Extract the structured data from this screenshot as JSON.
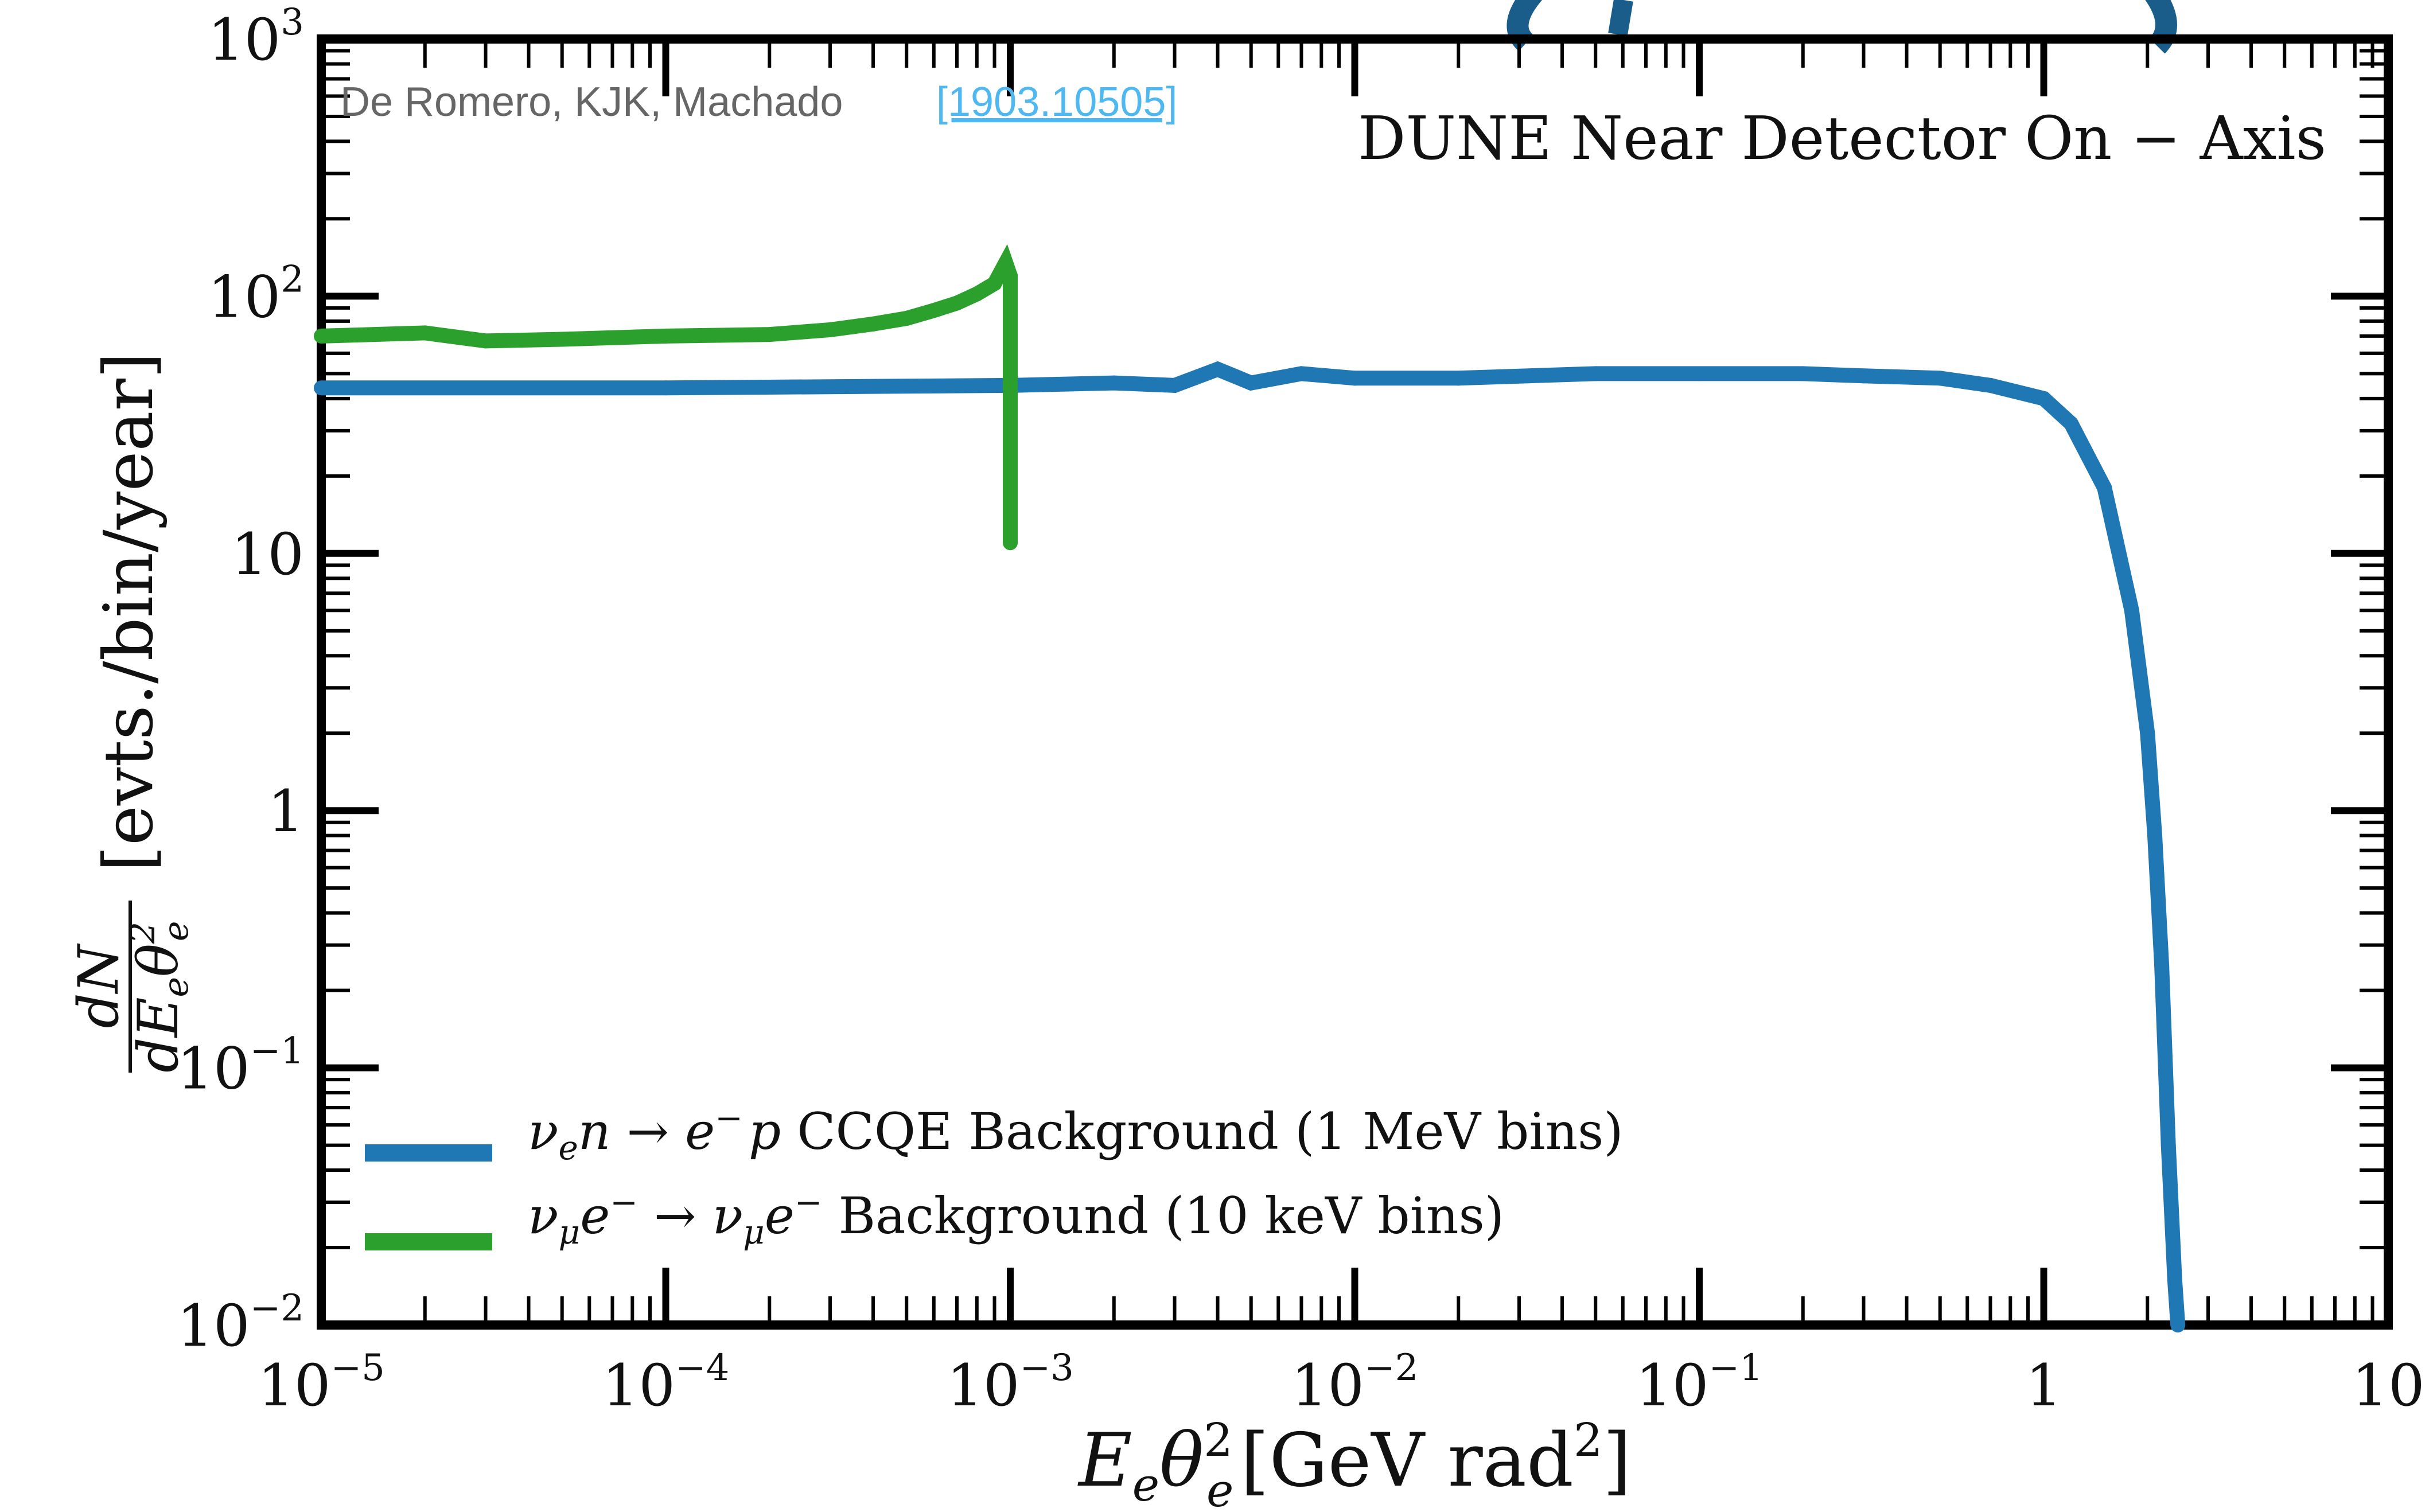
{
  "credit": {
    "authors": "De Romero, KJK, Machado",
    "arxiv": "[1903.10505]"
  },
  "annotation": "DUNE Near Detector On − Axis",
  "colors": {
    "ccqe": "#1f77b4",
    "mu_e": "#2ca02c",
    "title_fragment": "#1a5d8a"
  },
  "chart_data": {
    "type": "line",
    "xscale": "log",
    "yscale": "log",
    "xlim": [
      1e-05,
      10
    ],
    "ylim": [
      0.01,
      1000
    ],
    "xlabel": "E_e θ_e^2 [GeV rad^2]",
    "ylabel": "dN/dE_eθ_e^2 [evts./bin/year]",
    "x_ticks": [
      {
        "base": "10",
        "exp": "−5"
      },
      {
        "base": "10",
        "exp": "−4"
      },
      {
        "base": "10",
        "exp": "−3"
      },
      {
        "base": "10",
        "exp": "−2"
      },
      {
        "base": "10",
        "exp": "−1"
      },
      {
        "base": "1",
        "exp": ""
      },
      {
        "base": "10",
        "exp": ""
      }
    ],
    "y_ticks": [
      {
        "base": "10",
        "exp": "−2"
      },
      {
        "base": "10",
        "exp": "−1"
      },
      {
        "base": "1",
        "exp": ""
      },
      {
        "base": "10",
        "exp": ""
      },
      {
        "base": "10",
        "exp": "2"
      },
      {
        "base": "10",
        "exp": "3"
      }
    ],
    "legend_position": "lower-left",
    "series": [
      {
        "name": "ν_e n → e⁻ p CCQE Background (1 MeV bins)",
        "color": "#1f77b4",
        "x": [
          1e-05,
          0.0001,
          0.001,
          0.002,
          0.003,
          0.004,
          0.005,
          0.007,
          0.01,
          0.02,
          0.05,
          0.1,
          0.2,
          0.3,
          0.5,
          0.7,
          1.0,
          1.2,
          1.5,
          1.8,
          2.0,
          2.1,
          2.2,
          2.3,
          2.4,
          2.45
        ],
        "y": [
          44,
          44,
          45,
          46,
          45,
          52,
          46,
          50,
          48,
          48,
          50,
          50,
          50,
          49,
          48,
          45,
          40,
          32,
          18,
          6,
          2,
          0.8,
          0.25,
          0.05,
          0.015,
          0.01
        ]
      },
      {
        "name": "ν_μ e⁻ → ν_μ e⁻ Background (10 keV bins)",
        "color": "#2ca02c",
        "x": [
          1e-05,
          2e-05,
          3e-05,
          5e-05,
          0.0001,
          0.0002,
          0.0003,
          0.0004,
          0.0005,
          0.0006,
          0.0007,
          0.0008,
          0.0009,
          0.00097,
          0.001,
          0.001
        ],
        "y": [
          70,
          72,
          67,
          68,
          70,
          71,
          74,
          78,
          82,
          88,
          94,
          102,
          112,
          135,
          120,
          11
        ]
      }
    ],
    "legend_labels": {
      "ccqe": {
        "nu_sym": "ν",
        "nu_sub": "e",
        "mid": "n → e",
        "sup": "−",
        "p": "p",
        "text": " CCQE Background (1 MeV bins)"
      },
      "mue": {
        "nu_sym": "ν",
        "nu_sub": "μ",
        "mid": "e",
        "sup": "−",
        "arrow": " → ",
        "nu2_sym": "ν",
        "nu2_sub": "μ",
        "e2": "e",
        "sup2": "−",
        "text": " Background (10 keV bins)"
      }
    },
    "xlabel_parts": {
      "E": "E",
      "e_sub": "e",
      "theta": "θ",
      "theta_sup": "2",
      "theta_sub": "e",
      "unit_open": "[GeV rad",
      "unit_sup": "2",
      "unit_close": "]"
    },
    "ylabel_parts": {
      "num": "dN",
      "den_d": "dE",
      "den_sub": "e",
      "den_theta": "θ",
      "den_sup": "2",
      "den_sub2": "e",
      "units": "[evts./bin/year]"
    }
  }
}
